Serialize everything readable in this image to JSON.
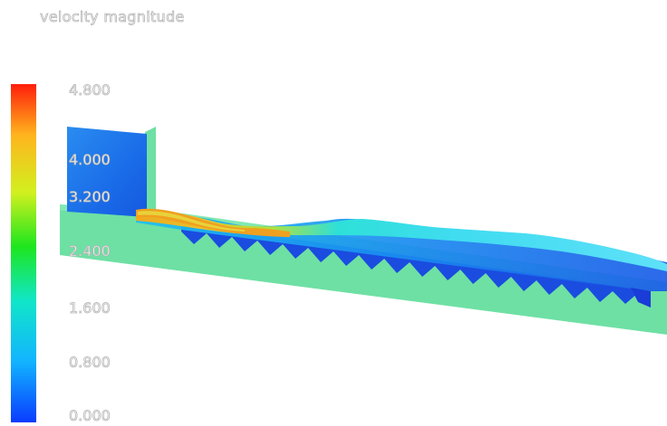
{
  "legend": {
    "title": "velocity magnitude",
    "ticks": [
      "4.800",
      "4.000",
      "3.200",
      "2.400",
      "1.600",
      "0.800",
      "0.000"
    ],
    "range": [
      0.0,
      4.8
    ],
    "colormap": [
      "#0a3cff",
      "#12b4ff",
      "#10e6c8",
      "#1ee61e",
      "#d2f01e",
      "#ffb41e",
      "#ff1e0a"
    ]
  },
  "scene": {
    "description_icon": "flume-spillway-render",
    "channel_color": "#6ee0a4",
    "water_colors": [
      "#1a6cf0",
      "#1ac8f0",
      "#2ee6e0",
      "#f0b21e"
    ]
  }
}
